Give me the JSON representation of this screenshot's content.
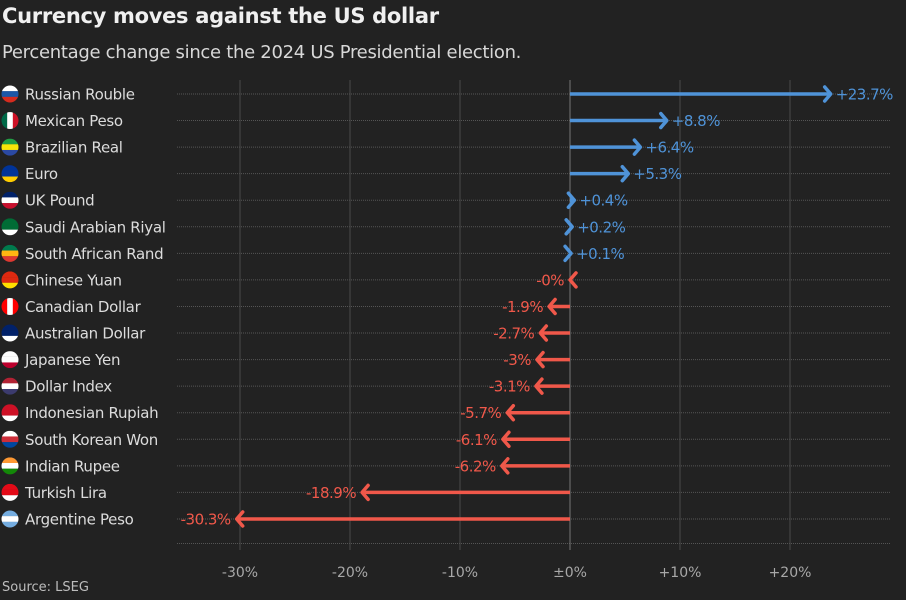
{
  "header": {
    "title": "Currency moves against the US dollar",
    "subtitle": "Percentage change since the 2024 US Presidential election."
  },
  "footer": {
    "source": "Source: LSEG"
  },
  "colors": {
    "positive": "#4f93d8",
    "negative": "#f0584a",
    "background": "#222222"
  },
  "chart_data": {
    "type": "bar",
    "orientation": "horizontal",
    "title": "Currency moves against the US dollar",
    "subtitle": "Percentage change since the 2024 US Presidential election.",
    "categories": [
      "Russian Rouble",
      "Mexican Peso",
      "Brazilian Real",
      "Euro",
      "UK Pound",
      "Saudi Arabian Riyal",
      "South African Rand",
      "Chinese Yuan",
      "Canadian Dollar",
      "Australian Dollar",
      "Japanese Yen",
      "Dollar Index",
      "Indonesian Rupiah",
      "South Korean Won",
      "Indian Rupee",
      "Turkish Lira",
      "Argentine Peso"
    ],
    "values": [
      23.7,
      8.8,
      6.4,
      5.3,
      0.4,
      0.2,
      0.1,
      -0.0,
      -1.9,
      -2.7,
      -3,
      -3.1,
      -5.7,
      -6.1,
      -6.2,
      -18.9,
      -30.3
    ],
    "data_labels": [
      "+23.7%",
      "+8.8%",
      "+6.4%",
      "+5.3%",
      "+0.4%",
      "+0.2%",
      "+0.1%",
      "-0%",
      "-1.9%",
      "-2.7%",
      "-3%",
      "-3.1%",
      "-5.7%",
      "-6.1%",
      "-6.2%",
      "-18.9%",
      "-30.3%"
    ],
    "flags": [
      "russia",
      "mexico",
      "brazil",
      "eu",
      "uk",
      "saudi-arabia",
      "south-africa",
      "china",
      "canada",
      "australia",
      "japan",
      "usa",
      "indonesia",
      "south-korea",
      "india",
      "turkey",
      "argentina"
    ],
    "xticks": [
      -30,
      -20,
      -10,
      0,
      10,
      20
    ],
    "xtick_labels": [
      "-30%",
      "-20%",
      "-10%",
      "±0%",
      "+10%",
      "+20%"
    ],
    "xlim": [
      -33.8,
      28.8
    ],
    "grid": true,
    "source": "Source: LSEG"
  }
}
